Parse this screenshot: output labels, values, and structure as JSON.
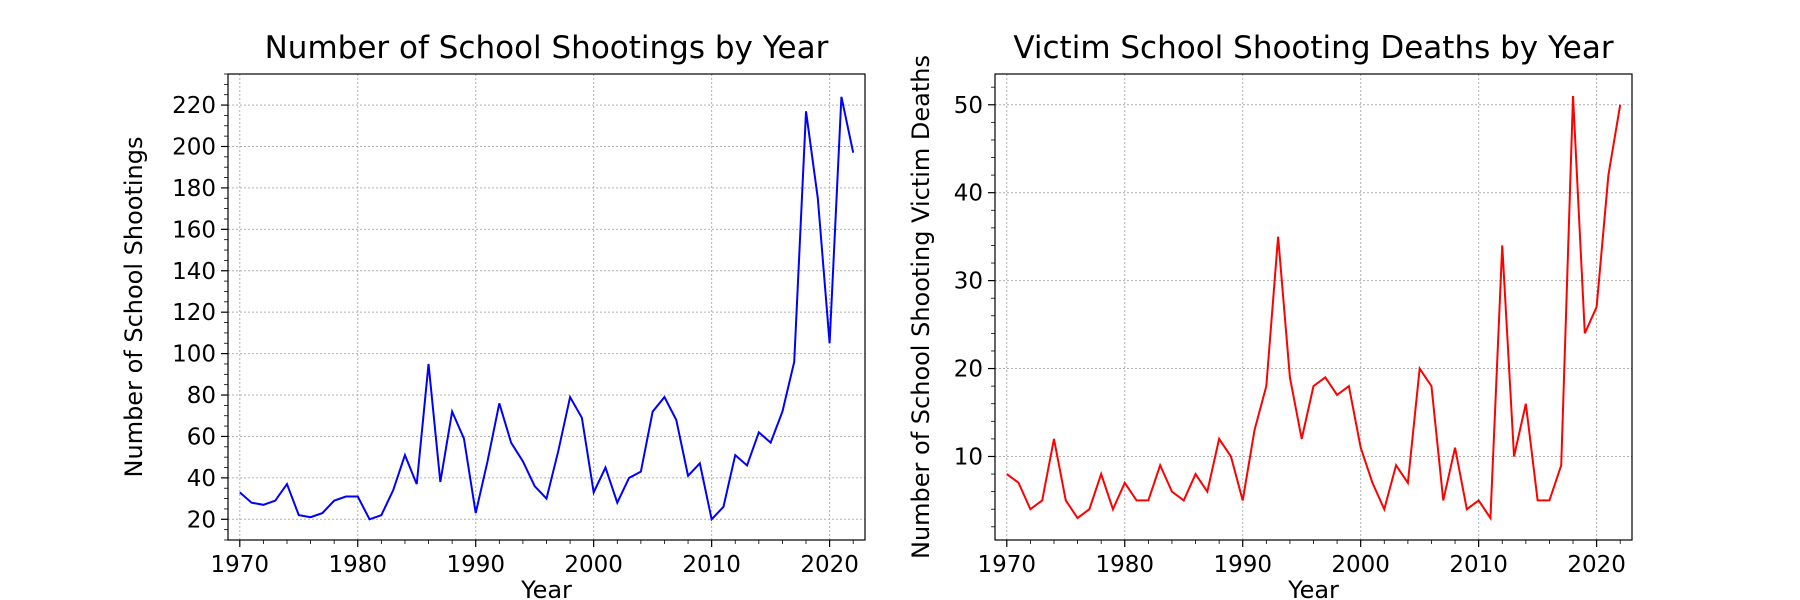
{
  "chart_data": [
    {
      "type": "line",
      "title": "Number of School Shootings by Year",
      "xlabel": "Year",
      "ylabel": "Number of School Shootings",
      "xlim": [
        1969,
        2023
      ],
      "ylim": [
        10,
        235
      ],
      "xticks": [
        1970,
        1980,
        1990,
        2000,
        2010,
        2020
      ],
      "yticks": [
        20,
        40,
        60,
        80,
        100,
        120,
        140,
        160,
        180,
        200,
        220
      ],
      "grid": true,
      "color": "#0000ff",
      "x": [
        1970,
        1971,
        1972,
        1973,
        1974,
        1975,
        1976,
        1977,
        1978,
        1979,
        1980,
        1981,
        1982,
        1983,
        1984,
        1985,
        1986,
        1987,
        1988,
        1989,
        1990,
        1991,
        1992,
        1993,
        1994,
        1995,
        1996,
        1997,
        1998,
        1999,
        2000,
        2001,
        2002,
        2003,
        2004,
        2005,
        2006,
        2007,
        2008,
        2009,
        2010,
        2011,
        2012,
        2013,
        2014,
        2015,
        2016,
        2017,
        2018,
        2019,
        2020,
        2021,
        2022
      ],
      "values": [
        33,
        28,
        27,
        29,
        37,
        22,
        21,
        23,
        29,
        31,
        31,
        20,
        22,
        34,
        51,
        37,
        95,
        38,
        72,
        59,
        23,
        48,
        76,
        57,
        48,
        36,
        30,
        53,
        79,
        69,
        33,
        45,
        28,
        40,
        43,
        72,
        79,
        68,
        41,
        47,
        20,
        26,
        51,
        46,
        62,
        57,
        72,
        96,
        217,
        175,
        105,
        224,
        197
      ]
    },
    {
      "type": "line",
      "title": "Victim School Shooting Deaths by Year",
      "xlabel": "Year",
      "ylabel": "Number of School Shooting Victim Deaths",
      "xlim": [
        1969,
        2023
      ],
      "ylim": [
        0.5,
        53.5
      ],
      "xticks": [
        1970,
        1980,
        1990,
        2000,
        2010,
        2020
      ],
      "yticks": [
        10,
        20,
        30,
        40,
        50
      ],
      "grid": true,
      "color": "#ff0000",
      "x": [
        1970,
        1971,
        1972,
        1973,
        1974,
        1975,
        1976,
        1977,
        1978,
        1979,
        1980,
        1981,
        1982,
        1983,
        1984,
        1985,
        1986,
        1987,
        1988,
        1989,
        1990,
        1991,
        1992,
        1993,
        1994,
        1995,
        1996,
        1997,
        1998,
        1999,
        2000,
        2001,
        2002,
        2003,
        2004,
        2005,
        2006,
        2007,
        2008,
        2009,
        2010,
        2011,
        2012,
        2013,
        2014,
        2015,
        2016,
        2017,
        2018,
        2019,
        2020,
        2021,
        2022
      ],
      "values": [
        8,
        7,
        4,
        5,
        12,
        5,
        3,
        4,
        8,
        4,
        7,
        5,
        5,
        9,
        6,
        5,
        8,
        6,
        12,
        10,
        5,
        13,
        18,
        35,
        19,
        12,
        18,
        19,
        17,
        18,
        11,
        7,
        4,
        9,
        7,
        20,
        18,
        5,
        11,
        4,
        5,
        3,
        34,
        10,
        16,
        5,
        5,
        9,
        51,
        24,
        27,
        42,
        50
      ]
    }
  ]
}
